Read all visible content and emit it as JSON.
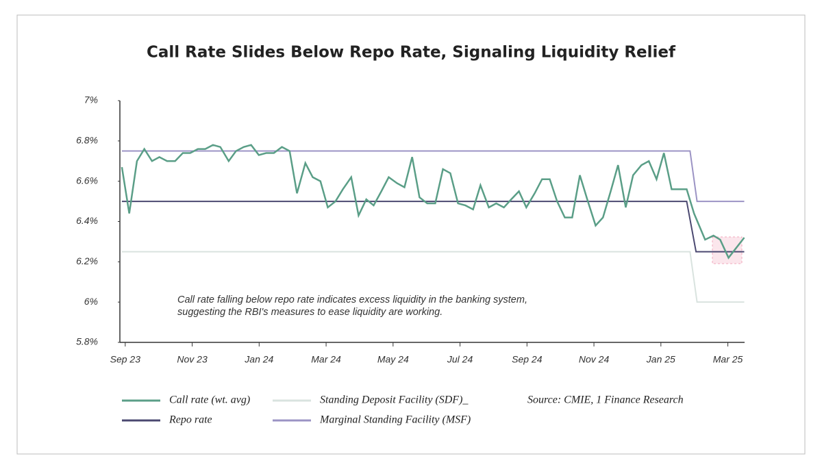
{
  "chart_data": {
    "type": "line",
    "title": "Call Rate Slides Below Repo Rate, Signaling Liquidity Relief",
    "annotation": [
      "Call rate falling below repo rate indicates excess liquidity in the banking system,",
      "suggesting the RBI's measures to ease liquidity are working."
    ],
    "source": "Source: CMIE, 1 Finance Research",
    "xlim": [
      -0.16,
      18.5
    ],
    "xticks": [
      {
        "value": 0,
        "label": "Sep 23"
      },
      {
        "value": 2,
        "label": "Nov 23"
      },
      {
        "value": 4,
        "label": "Jan 24"
      },
      {
        "value": 6,
        "label": "Mar 24"
      },
      {
        "value": 8,
        "label": "May 24"
      },
      {
        "value": 10,
        "label": "Jul 24"
      },
      {
        "value": 12,
        "label": "Sep 24"
      },
      {
        "value": 14,
        "label": "Nov 24"
      },
      {
        "value": 16,
        "label": "Jan 25"
      },
      {
        "value": 18,
        "label": "Mar 25"
      }
    ],
    "ylim": [
      5.8,
      7
    ],
    "yticks": [
      {
        "value": 5.8,
        "label": "5.8%"
      },
      {
        "value": 6,
        "label": "6%"
      },
      {
        "value": 6.2,
        "label": "6.2%"
      },
      {
        "value": 6.4,
        "label": "6.4%"
      },
      {
        "value": 6.6,
        "label": "6.6%"
      },
      {
        "value": 6.8,
        "label": "6.8%"
      },
      {
        "value": 7,
        "label": "7%"
      }
    ],
    "series": [
      {
        "name": "Call rate (wt. avg)",
        "color": "#5a9e87",
        "x": [
          -0.1,
          0.12,
          0.35,
          0.57,
          0.8,
          1.02,
          1.25,
          1.49,
          1.72,
          1.94,
          2.17,
          2.39,
          2.62,
          2.84,
          3.09,
          3.31,
          3.54,
          3.76,
          3.99,
          4.21,
          4.44,
          4.68,
          4.91,
          5.13,
          5.38,
          5.6,
          5.83,
          6.05,
          6.28,
          6.5,
          6.75,
          6.97,
          7.2,
          7.42,
          7.65,
          7.87,
          8.12,
          8.34,
          8.57,
          8.79,
          9.02,
          9.26,
          9.49,
          9.71,
          9.94,
          10.16,
          10.39,
          10.61,
          10.86,
          11.08,
          11.31,
          11.53,
          11.76,
          11.98,
          12.23,
          12.45,
          12.68,
          12.9,
          13.13,
          13.35,
          13.58,
          13.8,
          14.05,
          14.27,
          14.5,
          14.72,
          14.95,
          15.17,
          15.42,
          15.64,
          15.87,
          16.09,
          16.32,
          16.54,
          16.77,
          16.99,
          17.32,
          17.57,
          17.77,
          18.02,
          18.49
        ],
        "values": [
          6.67,
          6.44,
          6.7,
          6.76,
          6.7,
          6.72,
          6.7,
          6.7,
          6.74,
          6.74,
          6.76,
          6.76,
          6.78,
          6.77,
          6.7,
          6.75,
          6.77,
          6.78,
          6.73,
          6.74,
          6.74,
          6.77,
          6.75,
          6.54,
          6.69,
          6.62,
          6.6,
          6.47,
          6.5,
          6.56,
          6.62,
          6.43,
          6.51,
          6.48,
          6.55,
          6.62,
          6.59,
          6.57,
          6.72,
          6.52,
          6.49,
          6.49,
          6.66,
          6.64,
          6.49,
          6.48,
          6.46,
          6.58,
          6.47,
          6.49,
          6.47,
          6.51,
          6.55,
          6.47,
          6.54,
          6.61,
          6.61,
          6.5,
          6.42,
          6.42,
          6.63,
          6.51,
          6.38,
          6.42,
          6.55,
          6.68,
          6.47,
          6.63,
          6.68,
          6.7,
          6.61,
          6.74,
          6.56,
          6.56,
          6.56,
          6.44,
          6.31,
          6.33,
          6.31,
          6.22,
          6.32
        ]
      },
      {
        "name": "Standing Deposit Facility (SDF)_",
        "color": "#d9e3df",
        "x": [
          -0.1,
          16.87,
          17.08,
          18.49
        ],
        "values": [
          6.25,
          6.25,
          6.0,
          6.0
        ]
      },
      {
        "name": "Repo rate",
        "color": "#4a4870",
        "x": [
          -0.1,
          16.77,
          17.05,
          18.49
        ],
        "values": [
          6.5,
          6.5,
          6.25,
          6.25
        ]
      },
      {
        "name": "Marginal Standing Facility (MSF)",
        "color": "#9b93c4",
        "x": [
          -0.1,
          16.87,
          17.08,
          18.49
        ],
        "values": [
          6.75,
          6.75,
          6.5,
          6.5
        ]
      }
    ]
  }
}
